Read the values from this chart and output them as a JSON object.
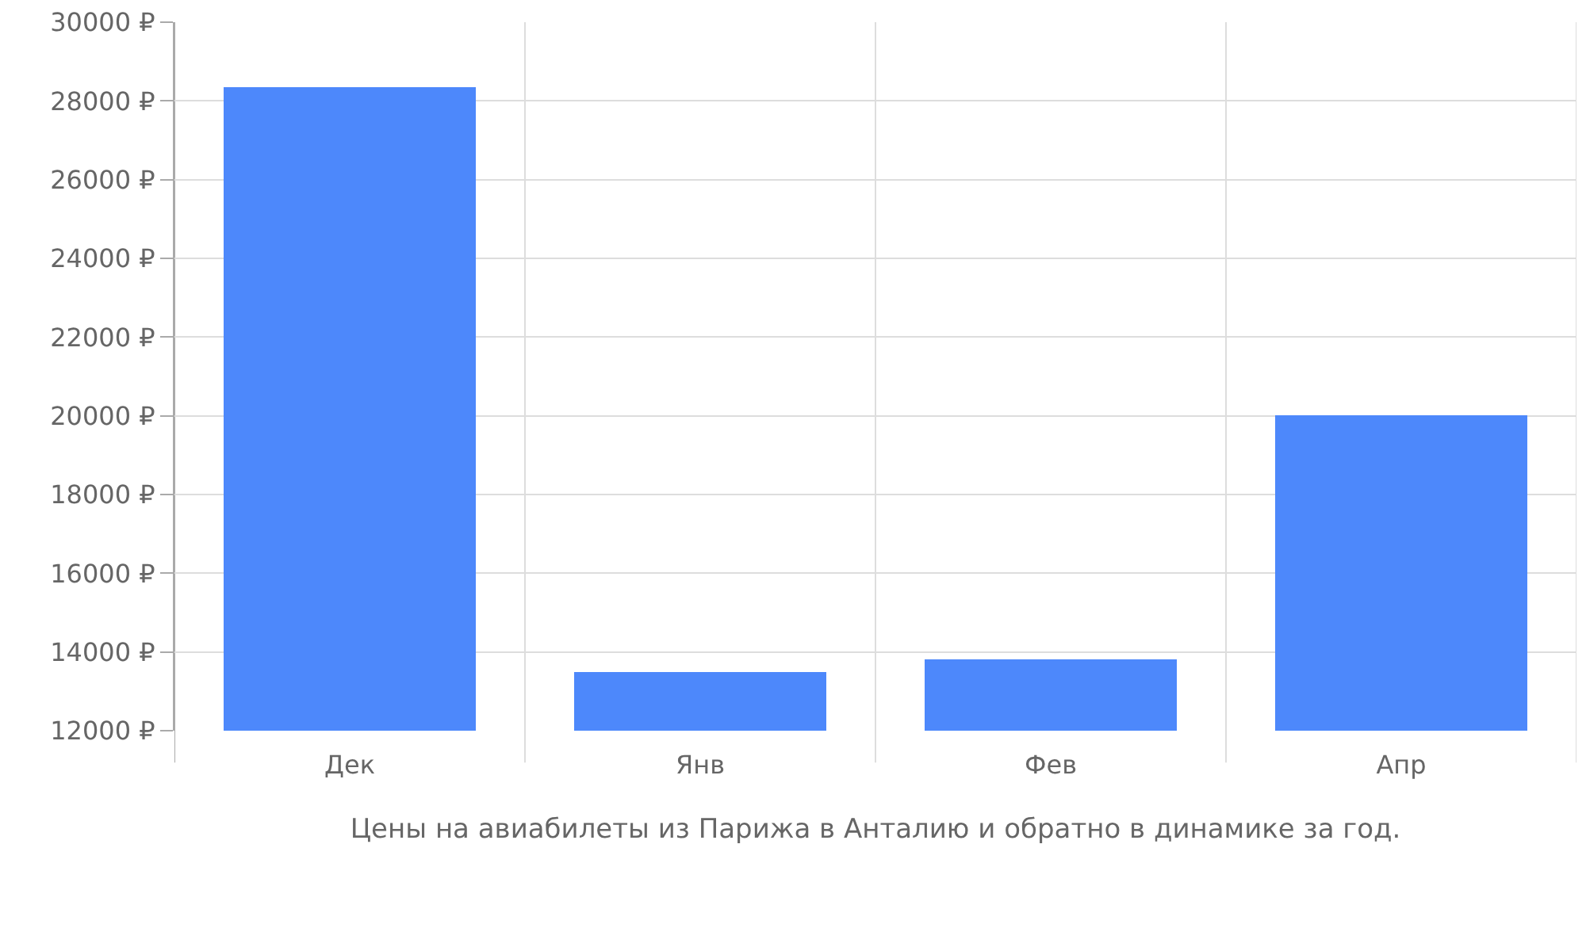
{
  "chart_data": {
    "type": "bar",
    "xlabel": "Цены на авиабилеты из Парижа в Анталию и обратно в динамике за год.",
    "categories": [
      "Дек",
      "Янв",
      "Фев",
      "Апр"
    ],
    "values": [
      28350,
      13500,
      13800,
      20000
    ],
    "color": "#4d88fb",
    "ylim": [
      12000,
      30000
    ],
    "yticks": [
      {
        "value": 12000,
        "label": "12000 ₽"
      },
      {
        "value": 14000,
        "label": "14000 ₽"
      },
      {
        "value": 16000,
        "label": "16000 ₽"
      },
      {
        "value": 18000,
        "label": "18000 ₽"
      },
      {
        "value": 20000,
        "label": "20000 ₽"
      },
      {
        "value": 22000,
        "label": "22000 ₽"
      },
      {
        "value": 24000,
        "label": "24000 ₽"
      },
      {
        "value": 26000,
        "label": "26000 ₽"
      },
      {
        "value": 28000,
        "label": "28000 ₽"
      },
      {
        "value": 30000,
        "label": "30000 ₽"
      }
    ],
    "grid": true
  }
}
